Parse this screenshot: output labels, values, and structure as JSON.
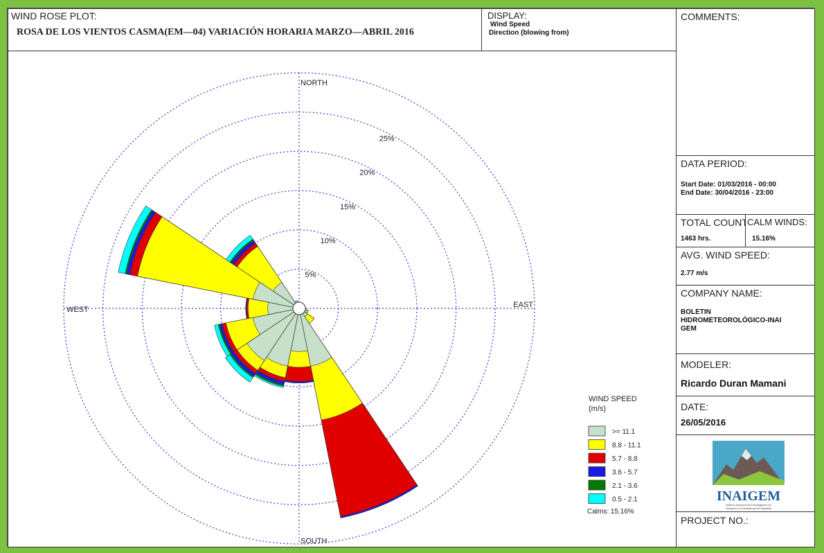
{
  "header": {
    "plot_label": "WIND ROSE PLOT:",
    "title": "ROSA DE LOS VIENTOS CASMA(EM—04)  VARIACIÓN HORARIA MARZO—ABRIL 2016",
    "display_label": "DISPLAY:",
    "display_value1": "Wind Speed",
    "display_value2": "Direction (blowing from)"
  },
  "sidebar": {
    "comments_label": "COMMENTS:",
    "data_period_label": "DATA PERIOD:",
    "start_date": "Start Date: 01/03/2016 - 00:00",
    "end_date": "End Date: 30/04/2016 - 23:00",
    "total_count_label": "TOTAL COUNT",
    "total_count_value": "1463 hrs.",
    "calm_winds_label": "CALM WINDS:",
    "calm_winds_value": "15.16%",
    "avg_speed_label": "AVG. WIND SPEED:",
    "avg_speed_value": "2.77 m/s",
    "company_label": "COMPANY NAME:",
    "company_line1": "BOLETIN",
    "company_line2": "HIDROMETEOROLÓGICO-INAI",
    "company_line3": "GEM",
    "modeler_label": "MODELER:",
    "modeler_value": "Ricardo Duran Mamani",
    "date_label": "DATE:",
    "date_value": "26/05/2016",
    "logo_text": "INAIGEM",
    "logo_subtext1": "Instituto Nacional de Investigación en",
    "logo_subtext2": "Glaciares y Ecosistemas de Montaña",
    "project_label": "PROJECT NO.:"
  },
  "colors": {
    "frame_green": "#7dc142",
    "grid": "#3a3adb"
  },
  "chart_data": {
    "type": "wind-rose",
    "directions_deg": [
      0,
      22.5,
      45,
      67.5,
      90,
      112.5,
      135,
      157.5,
      180,
      202.5,
      225,
      247.5,
      270,
      292.5,
      315,
      337.5
    ],
    "direction_labels": {
      "north": "NORTH",
      "east": "EAST",
      "south": "SOUTH",
      "west": "WEST"
    },
    "rings_percent": [
      5,
      10,
      15,
      20,
      25
    ],
    "ring_labels": [
      "5%",
      "10%",
      "15%",
      "20%",
      "25%"
    ],
    "ring_max_percent": 30,
    "legend_title1": "WIND SPEED",
    "legend_title2": "(m/s)",
    "calms_label": "Calms: 15.16%",
    "bins": [
      {
        "label": ">= 11.1",
        "color": "#c7e0c9"
      },
      {
        "label": "8.8 - 11.1",
        "color": "#ffff00"
      },
      {
        "label": "5.7 - 8.8",
        "color": "#e00000"
      },
      {
        "label": "3.6 - 5.7",
        "color": "#1a1ae6"
      },
      {
        "label": "2.1 - 3.6",
        "color": "#007a00"
      },
      {
        "label": "0.5 - 2.1",
        "color": "#00ffff"
      }
    ],
    "sectors": [
      {
        "dir": 0,
        "cum": [
          0.6,
          0.6,
          0.6,
          0.6,
          0.6,
          0.6
        ]
      },
      {
        "dir": 22.5,
        "cum": [
          0.6,
          0.6,
          0.6,
          0.6,
          0.6,
          0.6
        ]
      },
      {
        "dir": 45,
        "cum": [
          0.6,
          0.6,
          0.6,
          0.6,
          0.6,
          0.6
        ]
      },
      {
        "dir": 67.5,
        "cum": [
          0.7,
          0.7,
          0.7,
          0.7,
          0.7,
          0.7
        ]
      },
      {
        "dir": 90,
        "cum": [
          0.8,
          0.8,
          0.8,
          0.8,
          0.8,
          0.8
        ]
      },
      {
        "dir": 112.5,
        "cum": [
          1.0,
          1.2,
          1.2,
          1.2,
          1.2,
          1.2
        ]
      },
      {
        "dir": 135,
        "cum": [
          1.3,
          2.3,
          2.3,
          2.3,
          2.3,
          2.3
        ]
      },
      {
        "dir": 157.5,
        "cum": [
          7.5,
          14.5,
          27.0,
          27.2,
          27.2,
          27.2
        ]
      },
      {
        "dir": 180,
        "cum": [
          5.5,
          7.5,
          9.3,
          9.5,
          9.5,
          9.5
        ]
      },
      {
        "dir": 202.5,
        "cum": [
          7.5,
          9.0,
          9.5,
          9.9,
          10.1,
          10.3
        ]
      },
      {
        "dir": 225,
        "cum": [
          8.0,
          9.5,
          10.0,
          10.4,
          10.6,
          11.3
        ]
      },
      {
        "dir": 247.5,
        "cum": [
          6.0,
          9.5,
          10.0,
          10.3,
          10.5,
          11.0
        ]
      },
      {
        "dir": 270,
        "cum": [
          4.0,
          6.5,
          6.7,
          6.8,
          6.8,
          6.8
        ]
      },
      {
        "dir": 292.5,
        "cum": [
          6.0,
          21.0,
          22.0,
          22.4,
          22.6,
          23.5
        ]
      },
      {
        "dir": 315,
        "cum": [
          4.0,
          9.5,
          10.0,
          10.4,
          10.6,
          11.2
        ]
      },
      {
        "dir": 337.5,
        "cum": [
          1.0,
          1.0,
          1.0,
          1.0,
          1.0,
          1.0
        ]
      }
    ]
  }
}
